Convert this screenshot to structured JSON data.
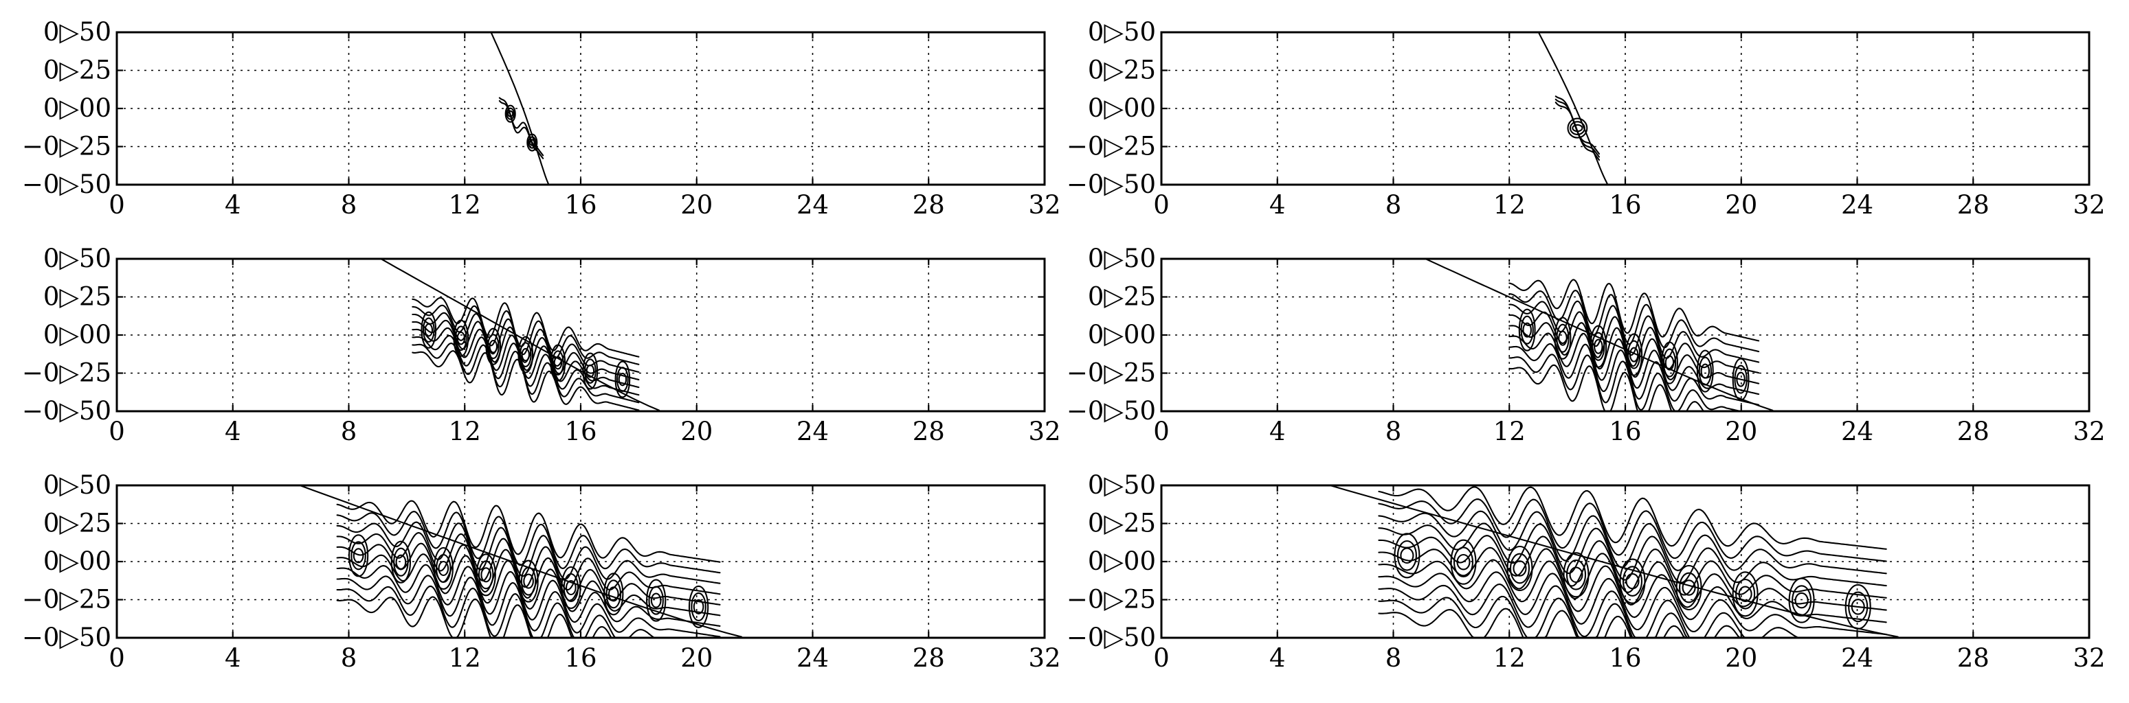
{
  "chart_data": [
    {
      "type": "line",
      "panel": "row1-left",
      "xlim": [
        0,
        32
      ],
      "ylim": [
        -0.5,
        0.5
      ],
      "xticks": [
        0,
        4,
        8,
        12,
        16,
        20,
        24,
        28,
        32
      ],
      "xtick_labels": [
        "0",
        "4",
        "8",
        "12",
        "16",
        "20",
        "24",
        "28",
        "32"
      ],
      "yticks": [
        0.5,
        0.25,
        0,
        -0.25,
        -0.5
      ],
      "ytick_labels": [
        "0▷50",
        "0▷25",
        "0▷00",
        "−0▷25",
        "−0▷50"
      ],
      "grid": true,
      "front": {
        "x_top": 12.9,
        "x_bottom": 14.9
      },
      "wake": {
        "x_start": 13.2,
        "x_end": 14.7,
        "vortices": 2,
        "roll_amp": 0.06,
        "bundle": 2,
        "bundle_spread": 0.02
      }
    },
    {
      "type": "line",
      "panel": "row1-right",
      "xlim": [
        0,
        32
      ],
      "ylim": [
        -0.5,
        0.5
      ],
      "xticks": [
        0,
        4,
        8,
        12,
        16,
        20,
        24,
        28,
        32
      ],
      "xtick_labels": [
        "0",
        "4",
        "8",
        "12",
        "16",
        "20",
        "24",
        "28",
        "32"
      ],
      "yticks": [
        0.5,
        0.25,
        0,
        -0.25,
        -0.5
      ],
      "ytick_labels": [
        "0▷50",
        "0▷25",
        "0▷00",
        "−0▷25",
        "−0▷50"
      ],
      "grid": true,
      "front": {
        "x_top": 13.0,
        "x_bottom": 15.4
      },
      "wake": {
        "x_start": 13.6,
        "x_end": 15.1,
        "vortices": 1,
        "roll_amp": 0.07,
        "bundle": 3,
        "bundle_spread": 0.02
      }
    },
    {
      "type": "line",
      "panel": "row2-left",
      "xlim": [
        0,
        32
      ],
      "ylim": [
        -0.5,
        0.5
      ],
      "xticks": [
        0,
        4,
        8,
        12,
        16,
        20,
        24,
        28,
        32
      ],
      "xtick_labels": [
        "0",
        "4",
        "8",
        "12",
        "16",
        "20",
        "24",
        "28",
        "32"
      ],
      "yticks": [
        0.5,
        0.25,
        0,
        -0.25,
        -0.5
      ],
      "ytick_labels": [
        "0▷50",
        "0▷25",
        "0▷00",
        "−0▷25",
        "−0▷50"
      ],
      "grid": true,
      "front": {
        "x_top": 9.1,
        "x_bottom": 18.8
      },
      "wake": {
        "x_start": 10.2,
        "x_end": 18.0,
        "vortices": 7,
        "roll_amp": 0.13,
        "bundle": 8,
        "bundle_spread": 0.05
      }
    },
    {
      "type": "line",
      "panel": "row2-right",
      "xlim": [
        0,
        32
      ],
      "ylim": [
        -0.5,
        0.5
      ],
      "xticks": [
        0,
        4,
        8,
        12,
        16,
        20,
        24,
        28,
        32
      ],
      "xtick_labels": [
        "0",
        "4",
        "8",
        "12",
        "16",
        "20",
        "24",
        "28",
        "32"
      ],
      "yticks": [
        0.5,
        0.25,
        0,
        -0.25,
        -0.5
      ],
      "ytick_labels": [
        "0▷50",
        "0▷25",
        "0▷00",
        "−0▷25",
        "−0▷50"
      ],
      "grid": true,
      "front": {
        "x_top": 9.1,
        "x_bottom": 21.2
      },
      "wake": {
        "x_start": 12.0,
        "x_end": 20.6,
        "vortices": 7,
        "roll_amp": 0.15,
        "bundle": 9,
        "bundle_spread": 0.07
      }
    },
    {
      "type": "line",
      "panel": "row3-left",
      "xlim": [
        0,
        32
      ],
      "ylim": [
        -0.5,
        0.5
      ],
      "xticks": [
        0,
        4,
        8,
        12,
        16,
        20,
        24,
        28,
        32
      ],
      "xtick_labels": [
        "0",
        "4",
        "8",
        "12",
        "16",
        "20",
        "24",
        "28",
        "32"
      ],
      "yticks": [
        0.5,
        0.25,
        0,
        -0.25,
        -0.5
      ],
      "ytick_labels": [
        "0▷50",
        "0▷25",
        "0▷00",
        "−0▷25",
        "−0▷50"
      ],
      "grid": true,
      "front": {
        "x_top": 6.3,
        "x_bottom": 21.7
      },
      "wake": {
        "x_start": 7.6,
        "x_end": 20.8,
        "vortices": 9,
        "roll_amp": 0.15,
        "bundle": 10,
        "bundle_spread": 0.07
      }
    },
    {
      "type": "line",
      "panel": "row3-right",
      "xlim": [
        0,
        32
      ],
      "ylim": [
        -0.5,
        0.5
      ],
      "xticks": [
        0,
        4,
        8,
        12,
        16,
        20,
        24,
        28,
        32
      ],
      "xtick_labels": [
        "0",
        "4",
        "8",
        "12",
        "16",
        "20",
        "24",
        "28",
        "32"
      ],
      "yticks": [
        0.5,
        0.25,
        0,
        -0.25,
        -0.5
      ],
      "ytick_labels": [
        "0▷50",
        "0▷25",
        "0▷00",
        "−0▷25",
        "−0▷50"
      ],
      "grid": true,
      "front": {
        "x_top": 5.8,
        "x_bottom": 25.6
      },
      "wake": {
        "x_start": 7.5,
        "x_end": 25.0,
        "vortices": 9,
        "roll_amp": 0.16,
        "bundle": 11,
        "bundle_spread": 0.08
      }
    }
  ]
}
